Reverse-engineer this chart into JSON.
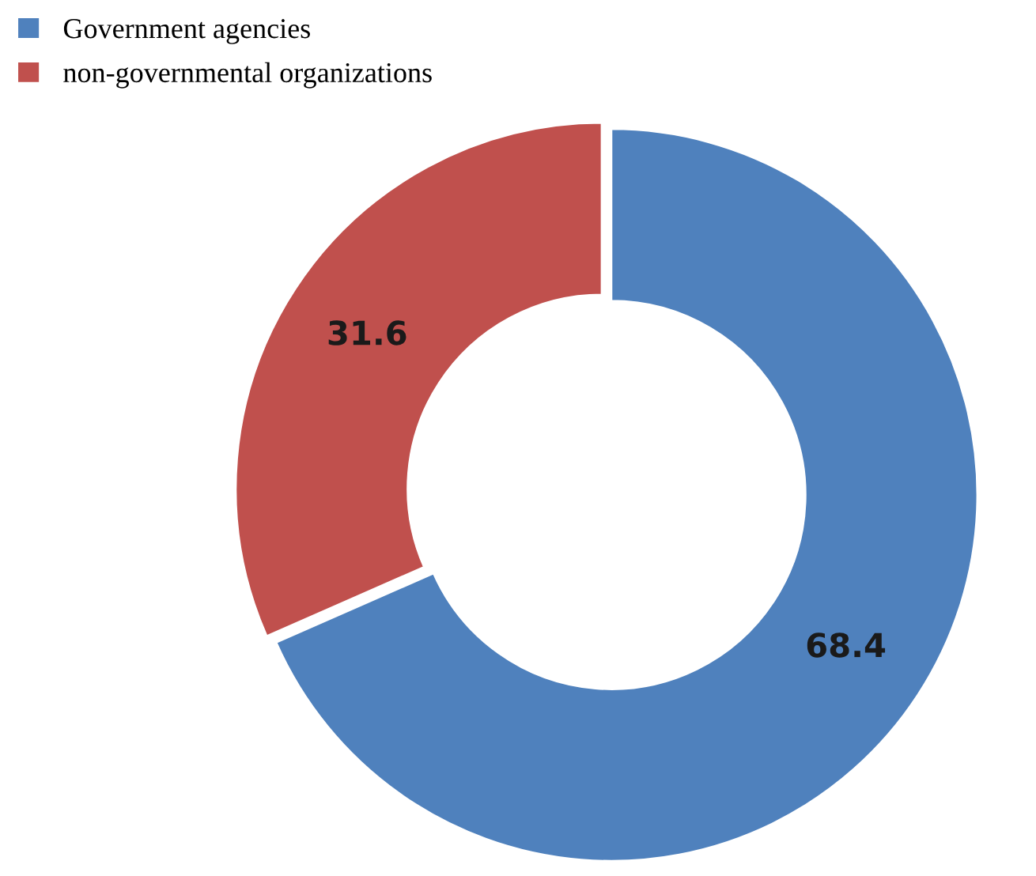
{
  "chart_data": {
    "type": "donut",
    "categories": [
      "Government agencies",
      "non-governmental organizations"
    ],
    "values": [
      68.4,
      31.6
    ],
    "colors": [
      "#4f81bd",
      "#c0504d"
    ],
    "data_labels": true,
    "legend": "top left"
  }
}
